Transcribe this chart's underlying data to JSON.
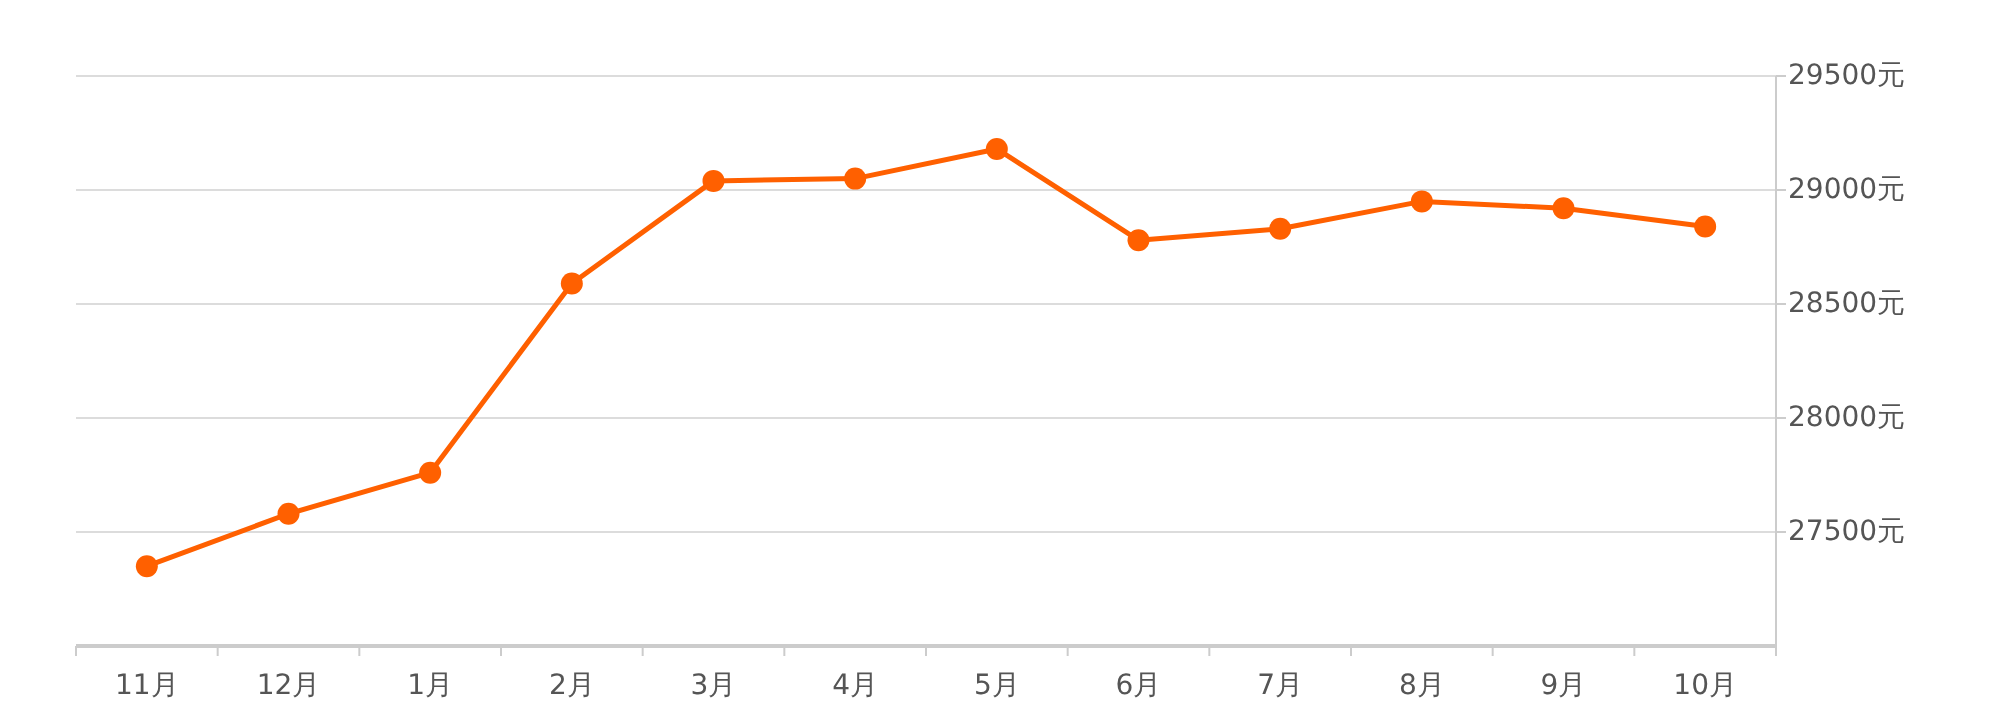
{
  "chart_data": {
    "type": "line",
    "categories": [
      "11月",
      "12月",
      "1月",
      "2月",
      "3月",
      "4月",
      "5月",
      "6月",
      "7月",
      "8月",
      "9月",
      "10月"
    ],
    "series": [
      {
        "color": "#ff6000",
        "values": [
          27350,
          27580,
          27760,
          28590,
          29040,
          29050,
          29180,
          28780,
          28830,
          28950,
          28920,
          28840
        ]
      }
    ],
    "ylim": [
      27000,
      29500
    ],
    "yticks": [
      {
        "value": 27500,
        "label": "27500元"
      },
      {
        "value": 28000,
        "label": "28000元"
      },
      {
        "value": 28500,
        "label": "28500元"
      },
      {
        "value": 29000,
        "label": "29000元"
      },
      {
        "value": 29500,
        "label": "29500元"
      }
    ],
    "grid": "y",
    "marker": "circle",
    "line_style": "solid"
  }
}
